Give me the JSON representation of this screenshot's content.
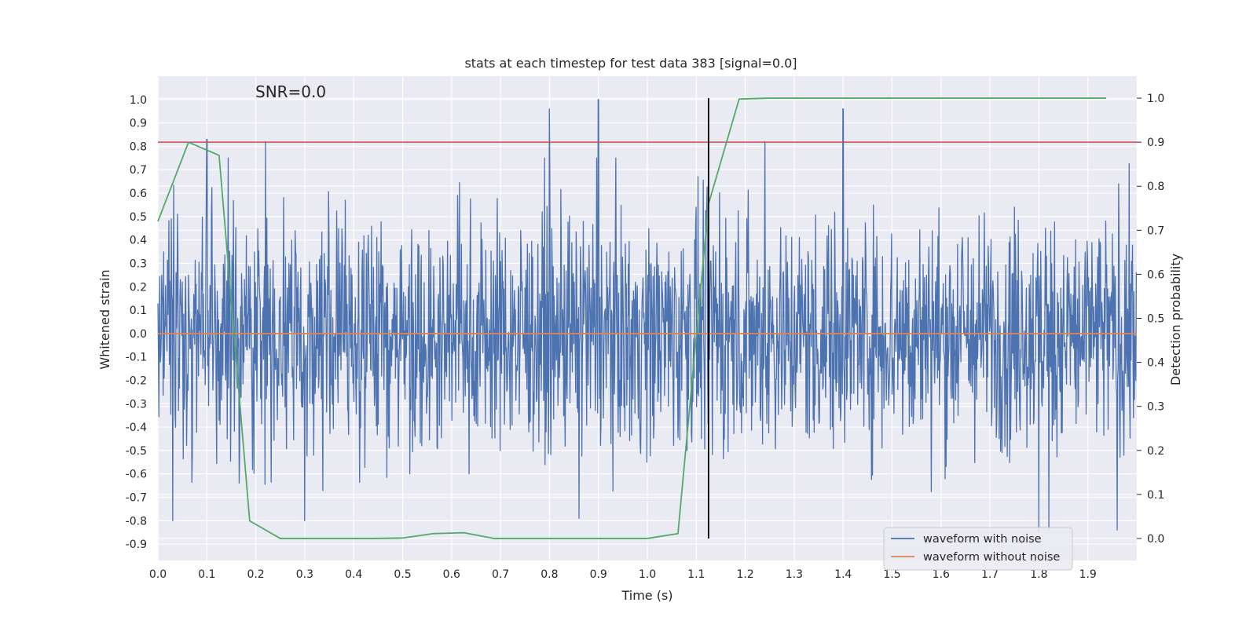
{
  "chart_data": {
    "type": "line",
    "title": "stats at each timestep for test data 383 [signal=0.0]",
    "xlabel": "Time (s)",
    "ylabel": "Whitened strain",
    "y2label": "Detection probability",
    "annotation": "SNR=0.0",
    "xlim": [
      0.0,
      2.0
    ],
    "ylim": [
      -0.97,
      1.1
    ],
    "y2lim": [
      -0.05,
      1.05
    ],
    "xticks": [
      "0.0",
      "0.1",
      "0.2",
      "0.3",
      "0.4",
      "0.5",
      "0.6",
      "0.7",
      "0.8",
      "0.9",
      "1.0",
      "1.1",
      "1.2",
      "1.3",
      "1.4",
      "1.5",
      "1.6",
      "1.7",
      "1.8",
      "1.9"
    ],
    "yticks": [
      "1.0",
      "0.9",
      "0.8",
      "0.7",
      "0.6",
      "0.5",
      "0.4",
      "0.3",
      "0.2",
      "0.1",
      "0.0",
      "-0.1",
      "-0.2",
      "-0.3",
      "-0.4",
      "-0.5",
      "-0.6",
      "-0.7",
      "-0.8",
      "-0.9"
    ],
    "y2ticks": [
      "1.0",
      "0.9",
      "0.8",
      "0.7",
      "0.6",
      "0.5",
      "0.4",
      "0.3",
      "0.2",
      "0.1",
      "0.0"
    ],
    "grid": true,
    "legend_position": "lower-right",
    "colors": {
      "background": "#eaeaf2",
      "grid": "#ffffff",
      "noise": "#4c72b0",
      "clean": "#dd8452",
      "probability": "#55a868",
      "threshold": "#c44e52",
      "marker": "#000000"
    },
    "series": [
      {
        "name": "waveform with noise",
        "axis": "left",
        "sampling": "noise trace, 2048 Hz, amplitude roughly within -0.85 to 1.0"
      },
      {
        "name": "waveform without noise",
        "axis": "left",
        "x": [
          0.0,
          2.0
        ],
        "y": [
          0.0,
          0.0
        ]
      },
      {
        "axis": "right",
        "x": [
          0.0,
          0.0625,
          0.125,
          0.1875,
          0.25,
          0.3125,
          0.375,
          0.4375,
          0.5,
          0.5625,
          0.625,
          0.6875,
          0.75,
          0.8125,
          0.875,
          0.9375,
          1.0,
          1.0625,
          1.125,
          1.1875,
          1.25,
          1.3125,
          1.375,
          1.4375,
          1.5,
          1.5625,
          1.625,
          1.6875,
          1.75,
          1.8125,
          1.875,
          1.9375
        ],
        "y": [
          0.72,
          0.9,
          0.87,
          0.04,
          0.0,
          0.0,
          0.0,
          0.0,
          0.001,
          0.011,
          0.013,
          0.0,
          0.0,
          0.0,
          0.0,
          0.0,
          0.0,
          0.011,
          0.76,
          0.998,
          1.0,
          1.0,
          1.0,
          1.0,
          1.0,
          1.0,
          1.0,
          1.0,
          1.0,
          1.0,
          1.0,
          1.0
        ]
      }
    ],
    "threshold_line": {
      "axis": "right",
      "value": 0.9
    },
    "marker_line": {
      "x": 1.125
    },
    "legend": [
      "waveform with noise",
      "waveform without noise"
    ]
  }
}
